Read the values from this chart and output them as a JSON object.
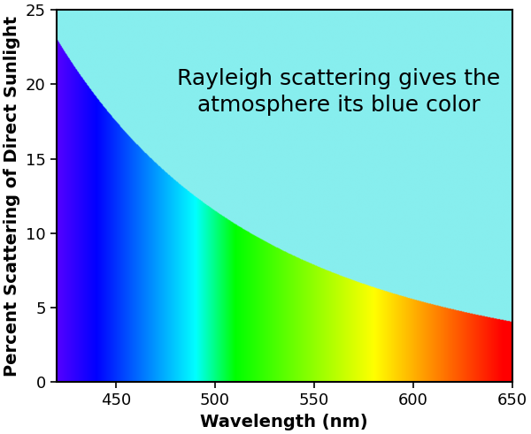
{
  "title_line1": "Rayleigh scattering gives the",
  "title_line2": "atmosphere its blue color",
  "xlabel": "Wavelength (nm)",
  "ylabel": "Percent Scattering of Direct Sunlight",
  "xlim": [
    420,
    650
  ],
  "ylim": [
    0,
    25
  ],
  "xticks": [
    450,
    500,
    550,
    600,
    650
  ],
  "yticks": [
    0,
    5,
    10,
    15,
    20,
    25
  ],
  "background_above": "#87EEEE",
  "title_fontsize": 18,
  "axis_label_fontsize": 14,
  "tick_fontsize": 13,
  "rayleigh_y_at_420": 23.0,
  "figsize": [
    6.0,
    4.91
  ],
  "dpi": 100
}
